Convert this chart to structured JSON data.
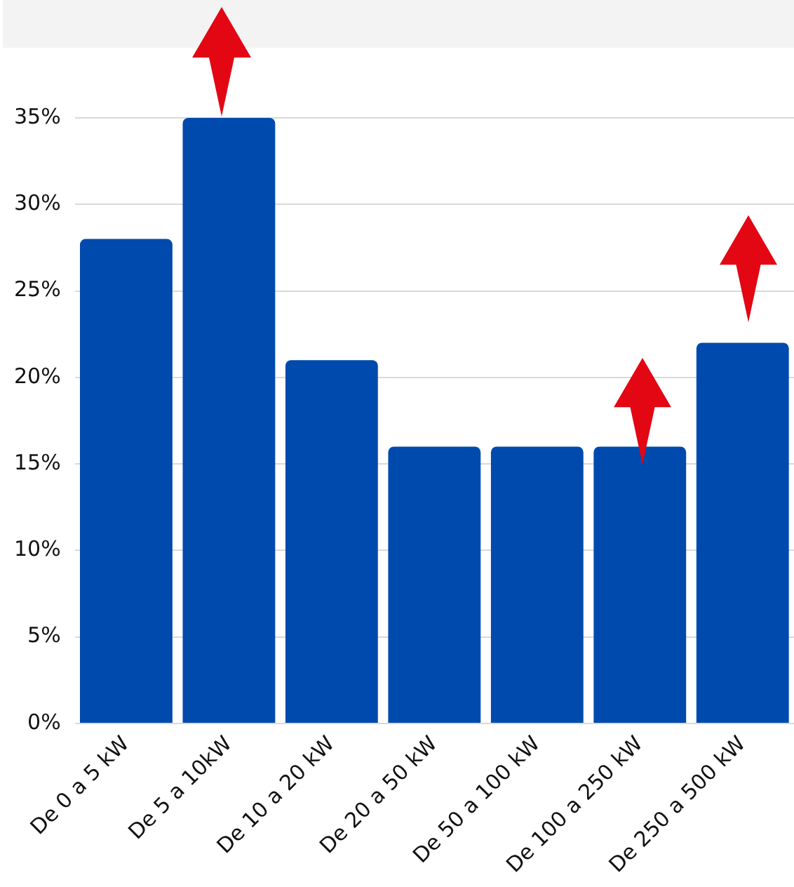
{
  "chart_data": {
    "type": "bar",
    "categories": [
      "De 0 a 5 kW",
      "De 5 a 10kW",
      "De 10 a 20 kW",
      "De 20 a 50 kW",
      "De 50 a 100 kW",
      "De 100 a 250 kW",
      "De 250 a 500 kW"
    ],
    "values": [
      28,
      35,
      21,
      16,
      16,
      16,
      22
    ],
    "color": "#004aad",
    "ylim": [
      0,
      35
    ],
    "yticks": [
      {
        "value": 0,
        "label": "0%"
      },
      {
        "value": 5,
        "label": "5%"
      },
      {
        "value": 10,
        "label": "10%"
      },
      {
        "value": 15,
        "label": "15%"
      },
      {
        "value": 20,
        "label": "20%"
      },
      {
        "value": 25,
        "label": "25%"
      },
      {
        "value": 30,
        "label": "30%"
      },
      {
        "value": 35,
        "label": "35%"
      }
    ],
    "grid": "y",
    "legend": false
  }
}
